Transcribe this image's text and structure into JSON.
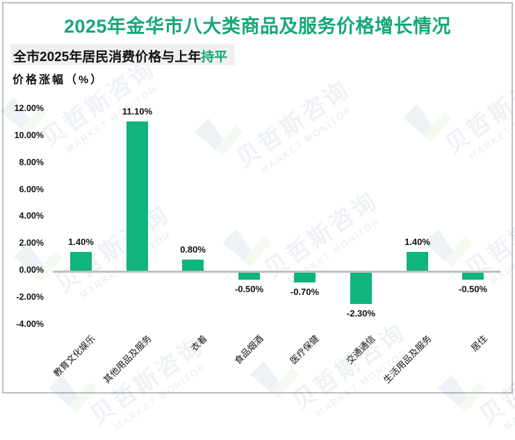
{
  "header": {
    "title": "2025年金华市八大类商品及服务价格增长情况",
    "subtitle_prefix": "全市2025年居民消费价格与上年",
    "subtitle_highlight": "持平",
    "y_axis_label": "价格涨幅（%）"
  },
  "watermark": {
    "text_cn": "贝哲斯咨询",
    "text_en": "MARKET MONITOR"
  },
  "colors": {
    "bar": "#0fb47e",
    "title": "#13a874",
    "highlight": "#13a874",
    "axis": "#bfbfbf",
    "subtitle_bg": "#f0f0f0"
  },
  "chart_data": {
    "type": "bar",
    "title": "2025年金华市八大类商品及服务价格增长情况",
    "subtitle": "全市2025年居民消费价格与上年持平",
    "xlabel": "",
    "ylabel": "价格涨幅（%）",
    "categories": [
      "教育文化娱乐",
      "其他用品及服务",
      "衣着",
      "食品烟酒",
      "医疗保健",
      "交通通信",
      "生活用品及服务",
      "居住"
    ],
    "values": [
      1.4,
      11.1,
      0.8,
      -0.5,
      -0.7,
      -2.3,
      1.4,
      -0.5
    ],
    "value_labels": [
      "1.40%",
      "11.10%",
      "0.80%",
      "-0.50%",
      "-0.70%",
      "-2.30%",
      "1.40%",
      "-0.50%"
    ],
    "ylim": [
      -4,
      12
    ],
    "yticks": [
      "12.00%",
      "10.00%",
      "8.00%",
      "6.00%",
      "4.00%",
      "2.00%",
      "0.00%",
      "-2.00%",
      "-4.00%"
    ],
    "grid": false,
    "legend": null
  }
}
